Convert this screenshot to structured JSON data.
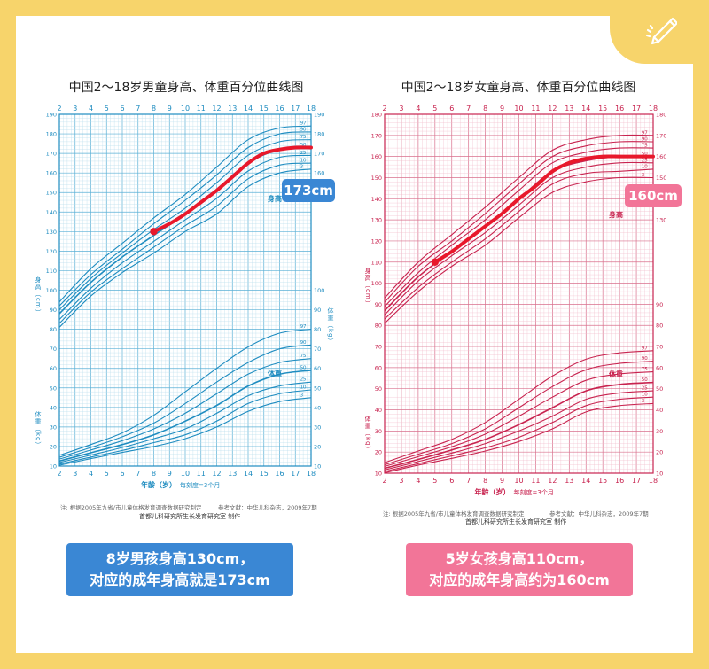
{
  "charts": [
    {
      "id": "boys",
      "title": "中国2～18岁男童身高、体重百分位曲线图",
      "color": "#1e8cc0",
      "gridLight": "#b7dcec",
      "gridDark": "#5bb0d6",
      "textColor": "#1e8cc0",
      "labels": {
        "height_zone": "身高",
        "weight_zone": "体重",
        "left_height_unit": "身高（cm）",
        "left_weight_unit": "体重（kg）",
        "right_weight_unit": "体重（kg）",
        "xaxis": "年龄（岁）",
        "xaxis_note": "每刻度=3个月"
      },
      "note": "注: 根据2005年九省/市儿童体格发育调查数据研究制定",
      "reference": "参考文献：中华儿科杂志，2009年7期",
      "org": "首都儿科研究所生长发育研究室  制作",
      "callout": "173cm",
      "callout_color": "#3a87d4",
      "caption_lines": [
        "8岁男孩身高130cm，",
        "对应的成年身高就是173cm"
      ],
      "caption_color": "#3a87d4",
      "marker": {
        "age": 8,
        "height": 130
      },
      "highlight": {
        "from_age": 8,
        "adult_height": 173
      }
    },
    {
      "id": "girls",
      "title": "中国2～18岁女童身高、体重百分位曲线图",
      "color": "#c8234f",
      "gridLight": "#f2bccb",
      "gridDark": "#d9708d",
      "textColor": "#c8234f",
      "labels": {
        "height_zone": "身高",
        "weight_zone": "体重",
        "left_height_unit": "身高（cm）",
        "left_weight_unit": "体重（kg）",
        "right_weight_unit": "体重（kg）",
        "right_height_unit": "身高（cm）",
        "xaxis": "年龄（岁）",
        "xaxis_note": "每刻度=3个月"
      },
      "note": "注: 根据2005年九省/市儿童体格发育调查数据研究制定",
      "reference": "参考文献：中华儿科杂志，2009年7期",
      "org": "首都儿科研究所生长发育研究室  制作",
      "callout": "160cm",
      "callout_color": "#f27598",
      "caption_lines": [
        "5岁女孩身高110cm，",
        "对应的成年身高约为160cm"
      ],
      "caption_color": "#f27598",
      "marker": {
        "age": 5,
        "height": 110
      },
      "highlight": {
        "from_age": 5,
        "adult_height": 160
      }
    }
  ],
  "chart_data": [
    {
      "type": "line",
      "title": "中国2～18岁男童身高、体重百分位曲线图",
      "xlabel": "年龄（岁）",
      "xlim": [
        2,
        18
      ],
      "x_ticks": [
        2,
        3,
        4,
        5,
        6,
        7,
        8,
        9,
        10,
        11,
        12,
        13,
        14,
        15,
        16,
        17,
        18
      ],
      "y_left_ticks": [
        10,
        20,
        30,
        40,
        50,
        60,
        70,
        80,
        90,
        100,
        110,
        120,
        130,
        140,
        150,
        160,
        170,
        180,
        190
      ],
      "y_right_weight_ticks": [
        10,
        20,
        30,
        40,
        50,
        60,
        70,
        80,
        90,
        100
      ],
      "y_right_height_ticks": [
        150,
        160,
        170,
        180,
        190
      ],
      "ylim": [
        10,
        190
      ],
      "x": [
        2,
        4,
        6,
        8,
        10,
        12,
        14,
        16,
        18
      ],
      "height_series": [
        {
          "name": "97",
          "values": [
            94,
            111,
            124,
            137,
            149,
            163,
            177,
            183,
            184
          ]
        },
        {
          "name": "90",
          "values": [
            92,
            108,
            121,
            134,
            146,
            159,
            173,
            180,
            181
          ]
        },
        {
          "name": "75",
          "values": [
            90,
            106,
            119,
            131,
            142,
            155,
            169,
            176,
            177
          ]
        },
        {
          "name": "50",
          "values": [
            88,
            104,
            117,
            128,
            139,
            151,
            165,
            172,
            173
          ]
        },
        {
          "name": "25",
          "values": [
            85,
            101,
            114,
            125,
            136,
            147,
            161,
            168,
            169
          ]
        },
        {
          "name": "10",
          "values": [
            83,
            99,
            111,
            122,
            133,
            143,
            157,
            164,
            165
          ]
        },
        {
          "name": "3",
          "values": [
            81,
            97,
            109,
            119,
            130,
            139,
            153,
            160,
            162
          ]
        }
      ],
      "weight_series": [
        {
          "name": "97",
          "values": [
            15.5,
            21,
            27,
            36,
            48,
            60,
            71,
            78,
            80
          ]
        },
        {
          "name": "90",
          "values": [
            14.5,
            19.5,
            25,
            32,
            42,
            53,
            63,
            70,
            72
          ]
        },
        {
          "name": "75",
          "values": [
            13.6,
            18.2,
            23,
            29,
            37,
            47,
            57,
            63,
            65
          ]
        },
        {
          "name": "50",
          "values": [
            12.6,
            16.8,
            21,
            26,
            33,
            41,
            51,
            57,
            59
          ]
        },
        {
          "name": "25",
          "values": [
            11.8,
            15.6,
            19.5,
            24,
            29,
            37,
            46,
            51,
            53
          ]
        },
        {
          "name": "10",
          "values": [
            11,
            14.6,
            18,
            22,
            26,
            33,
            42,
            47,
            49
          ]
        },
        {
          "name": "3",
          "values": [
            10.4,
            13.8,
            17,
            20,
            24,
            30,
            38,
            43,
            45
          ]
        }
      ],
      "highlight": {
        "x": [
          8,
          9,
          10,
          11,
          12,
          13,
          14,
          15,
          16,
          17,
          18
        ],
        "values": [
          130,
          134,
          139,
          145,
          151,
          158,
          165,
          170,
          172,
          173,
          173
        ]
      },
      "marker": {
        "x": 8,
        "y": 130
      },
      "callout": "173cm"
    },
    {
      "type": "line",
      "title": "中国2～18岁女童身高、体重百分位曲线图",
      "xlabel": "年龄（岁）",
      "xlim": [
        2,
        18
      ],
      "x_ticks": [
        2,
        3,
        4,
        5,
        6,
        7,
        8,
        9,
        10,
        11,
        12,
        13,
        14,
        15,
        16,
        17,
        18
      ],
      "y_left_ticks": [
        10,
        20,
        30,
        40,
        50,
        60,
        70,
        80,
        90,
        100,
        110,
        120,
        130,
        140,
        150,
        160,
        170,
        180
      ],
      "y_right_weight_ticks": [
        10,
        20,
        30,
        40,
        50,
        60,
        70,
        80,
        90
      ],
      "y_right_height_ticks": [
        130,
        140,
        150,
        160,
        170,
        180
      ],
      "ylim": [
        10,
        180
      ],
      "x": [
        2,
        4,
        6,
        8,
        10,
        12,
        14,
        16,
        18
      ],
      "height_series": [
        {
          "name": "97",
          "values": [
            93,
            110,
            123,
            136,
            150,
            163,
            168,
            170,
            170
          ]
        },
        {
          "name": "90",
          "values": [
            91,
            108,
            120,
            133,
            147,
            160,
            165,
            167,
            167
          ]
        },
        {
          "name": "75",
          "values": [
            89,
            105,
            118,
            130,
            144,
            157,
            162,
            164,
            164
          ]
        },
        {
          "name": "50",
          "values": [
            87,
            103,
            115,
            127,
            140,
            153,
            158,
            160,
            160
          ]
        },
        {
          "name": "25",
          "values": [
            85,
            101,
            113,
            124,
            137,
            150,
            155,
            157,
            157
          ]
        },
        {
          "name": "10",
          "values": [
            83,
            98,
            110,
            121,
            134,
            147,
            152,
            153,
            154
          ]
        },
        {
          "name": "3",
          "values": [
            81,
            96,
            108,
            118,
            131,
            143,
            148,
            150,
            150
          ]
        }
      ],
      "weight_series": [
        {
          "name": "97",
          "values": [
            15,
            20.5,
            26,
            34,
            45,
            56,
            64,
            67,
            68
          ]
        },
        {
          "name": "90",
          "values": [
            14,
            19,
            24,
            31,
            41,
            51,
            59,
            62,
            63
          ]
        },
        {
          "name": "75",
          "values": [
            13.2,
            17.8,
            22.5,
            28.5,
            37,
            46,
            54,
            57,
            58
          ]
        },
        {
          "name": "50",
          "values": [
            12.3,
            16.5,
            21,
            26,
            33,
            41,
            49,
            52,
            53
          ]
        },
        {
          "name": "25",
          "values": [
            11.5,
            15.5,
            19.5,
            24,
            30,
            37,
            45,
            48,
            49
          ]
        },
        {
          "name": "10",
          "values": [
            10.8,
            14.5,
            18.2,
            22,
            27,
            34,
            42,
            45,
            46
          ]
        },
        {
          "name": "3",
          "values": [
            10.2,
            13.8,
            17,
            20.5,
            25,
            31,
            39,
            42,
            43
          ]
        }
      ],
      "highlight": {
        "x": [
          5,
          6,
          7,
          8,
          9,
          10,
          11,
          12,
          13,
          14,
          15,
          16,
          17,
          18
        ],
        "values": [
          110,
          115,
          121,
          127,
          133,
          140,
          146,
          153,
          157,
          159,
          160,
          160,
          160,
          160
        ]
      },
      "marker": {
        "x": 5,
        "y": 110
      },
      "callout": "160cm"
    }
  ]
}
